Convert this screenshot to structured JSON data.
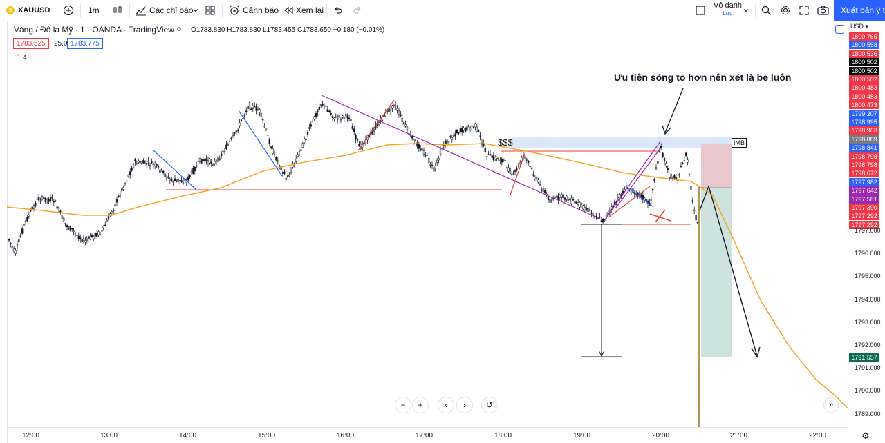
{
  "topbar": {
    "symbol": "XAUUSD",
    "interval": "1m",
    "indicators_label": "Các chỉ báo",
    "alert_label": "Cảnh báo",
    "replay_label": "Xem lại",
    "user_name": "Vô danh",
    "user_status": "Lưu",
    "publish_label": "Xuất bản ý tư"
  },
  "legend": {
    "title": "Vàng / Đô la Mỹ · 1 · OANDA · TradingView",
    "ohlc": "O1783.830 H1783.830 L1783.455 C1783.650 −0.180 (−0.01%)",
    "sell_price": "1783.525",
    "spread": "25.0",
    "buy_price": "1783.775",
    "indicator_count": "4"
  },
  "price_axis": {
    "currency": "USD",
    "ticks": [
      "1797.000",
      "1796.000",
      "1795.000",
      "1794.000",
      "1793.000",
      "1792.000",
      "1791.000",
      "1790.000",
      "1789.000"
    ],
    "tags": [
      {
        "v": "1800.765",
        "c": "#f23645"
      },
      {
        "v": "1800.558",
        "c": "#2962ff"
      },
      {
        "v": "1800.536",
        "c": "#f23645"
      },
      {
        "v": "1800.502",
        "c": "#000000"
      },
      {
        "v": "1800.502",
        "c": "#000000"
      },
      {
        "v": "1800.502",
        "c": "#f23645"
      },
      {
        "v": "1800.483",
        "c": "#f23645"
      },
      {
        "v": "1800.483",
        "c": "#f23645"
      },
      {
        "v": "1800.473",
        "c": "#f23645"
      },
      {
        "v": "1799.207",
        "c": "#2962ff"
      },
      {
        "v": "1798.995",
        "c": "#2962ff"
      },
      {
        "v": "1798.963",
        "c": "#f23645"
      },
      {
        "v": "1798.889",
        "c": "#787b86"
      },
      {
        "v": "1798.841",
        "c": "#2962ff"
      },
      {
        "v": "1798.798",
        "c": "#f23645"
      },
      {
        "v": "1798.798",
        "c": "#f23645"
      },
      {
        "v": "1798.672",
        "c": "#f23645"
      },
      {
        "v": "1797.982",
        "c": "#2962ff"
      },
      {
        "v": "1797.642",
        "c": "#9c27b0"
      },
      {
        "v": "1797.581",
        "c": "#9c27b0"
      },
      {
        "v": "1797.390",
        "c": "#f23645"
      },
      {
        "v": "1797.292",
        "c": "#f23645"
      },
      {
        "v": "1797.292",
        "c": "#f23645"
      }
    ],
    "target_tag": "1791.557",
    "target_color": "#0f6b4f"
  },
  "time_axis": [
    "12:00",
    "13:00",
    "14:00",
    "15:00",
    "16:00",
    "17:00",
    "18:00",
    "19:00",
    "20:00",
    "21:00",
    "22:00"
  ],
  "annotations": {
    "note": "Ưu tiên sóng to hơn nên xét là be luôn",
    "liquidity": "$$$",
    "imb": "IMB"
  },
  "colors": {
    "ema": "#f5a623",
    "purple": "#9c27b0",
    "red_line": "#e53935",
    "blue_line": "#2962ff",
    "accent": "#2962ff"
  }
}
